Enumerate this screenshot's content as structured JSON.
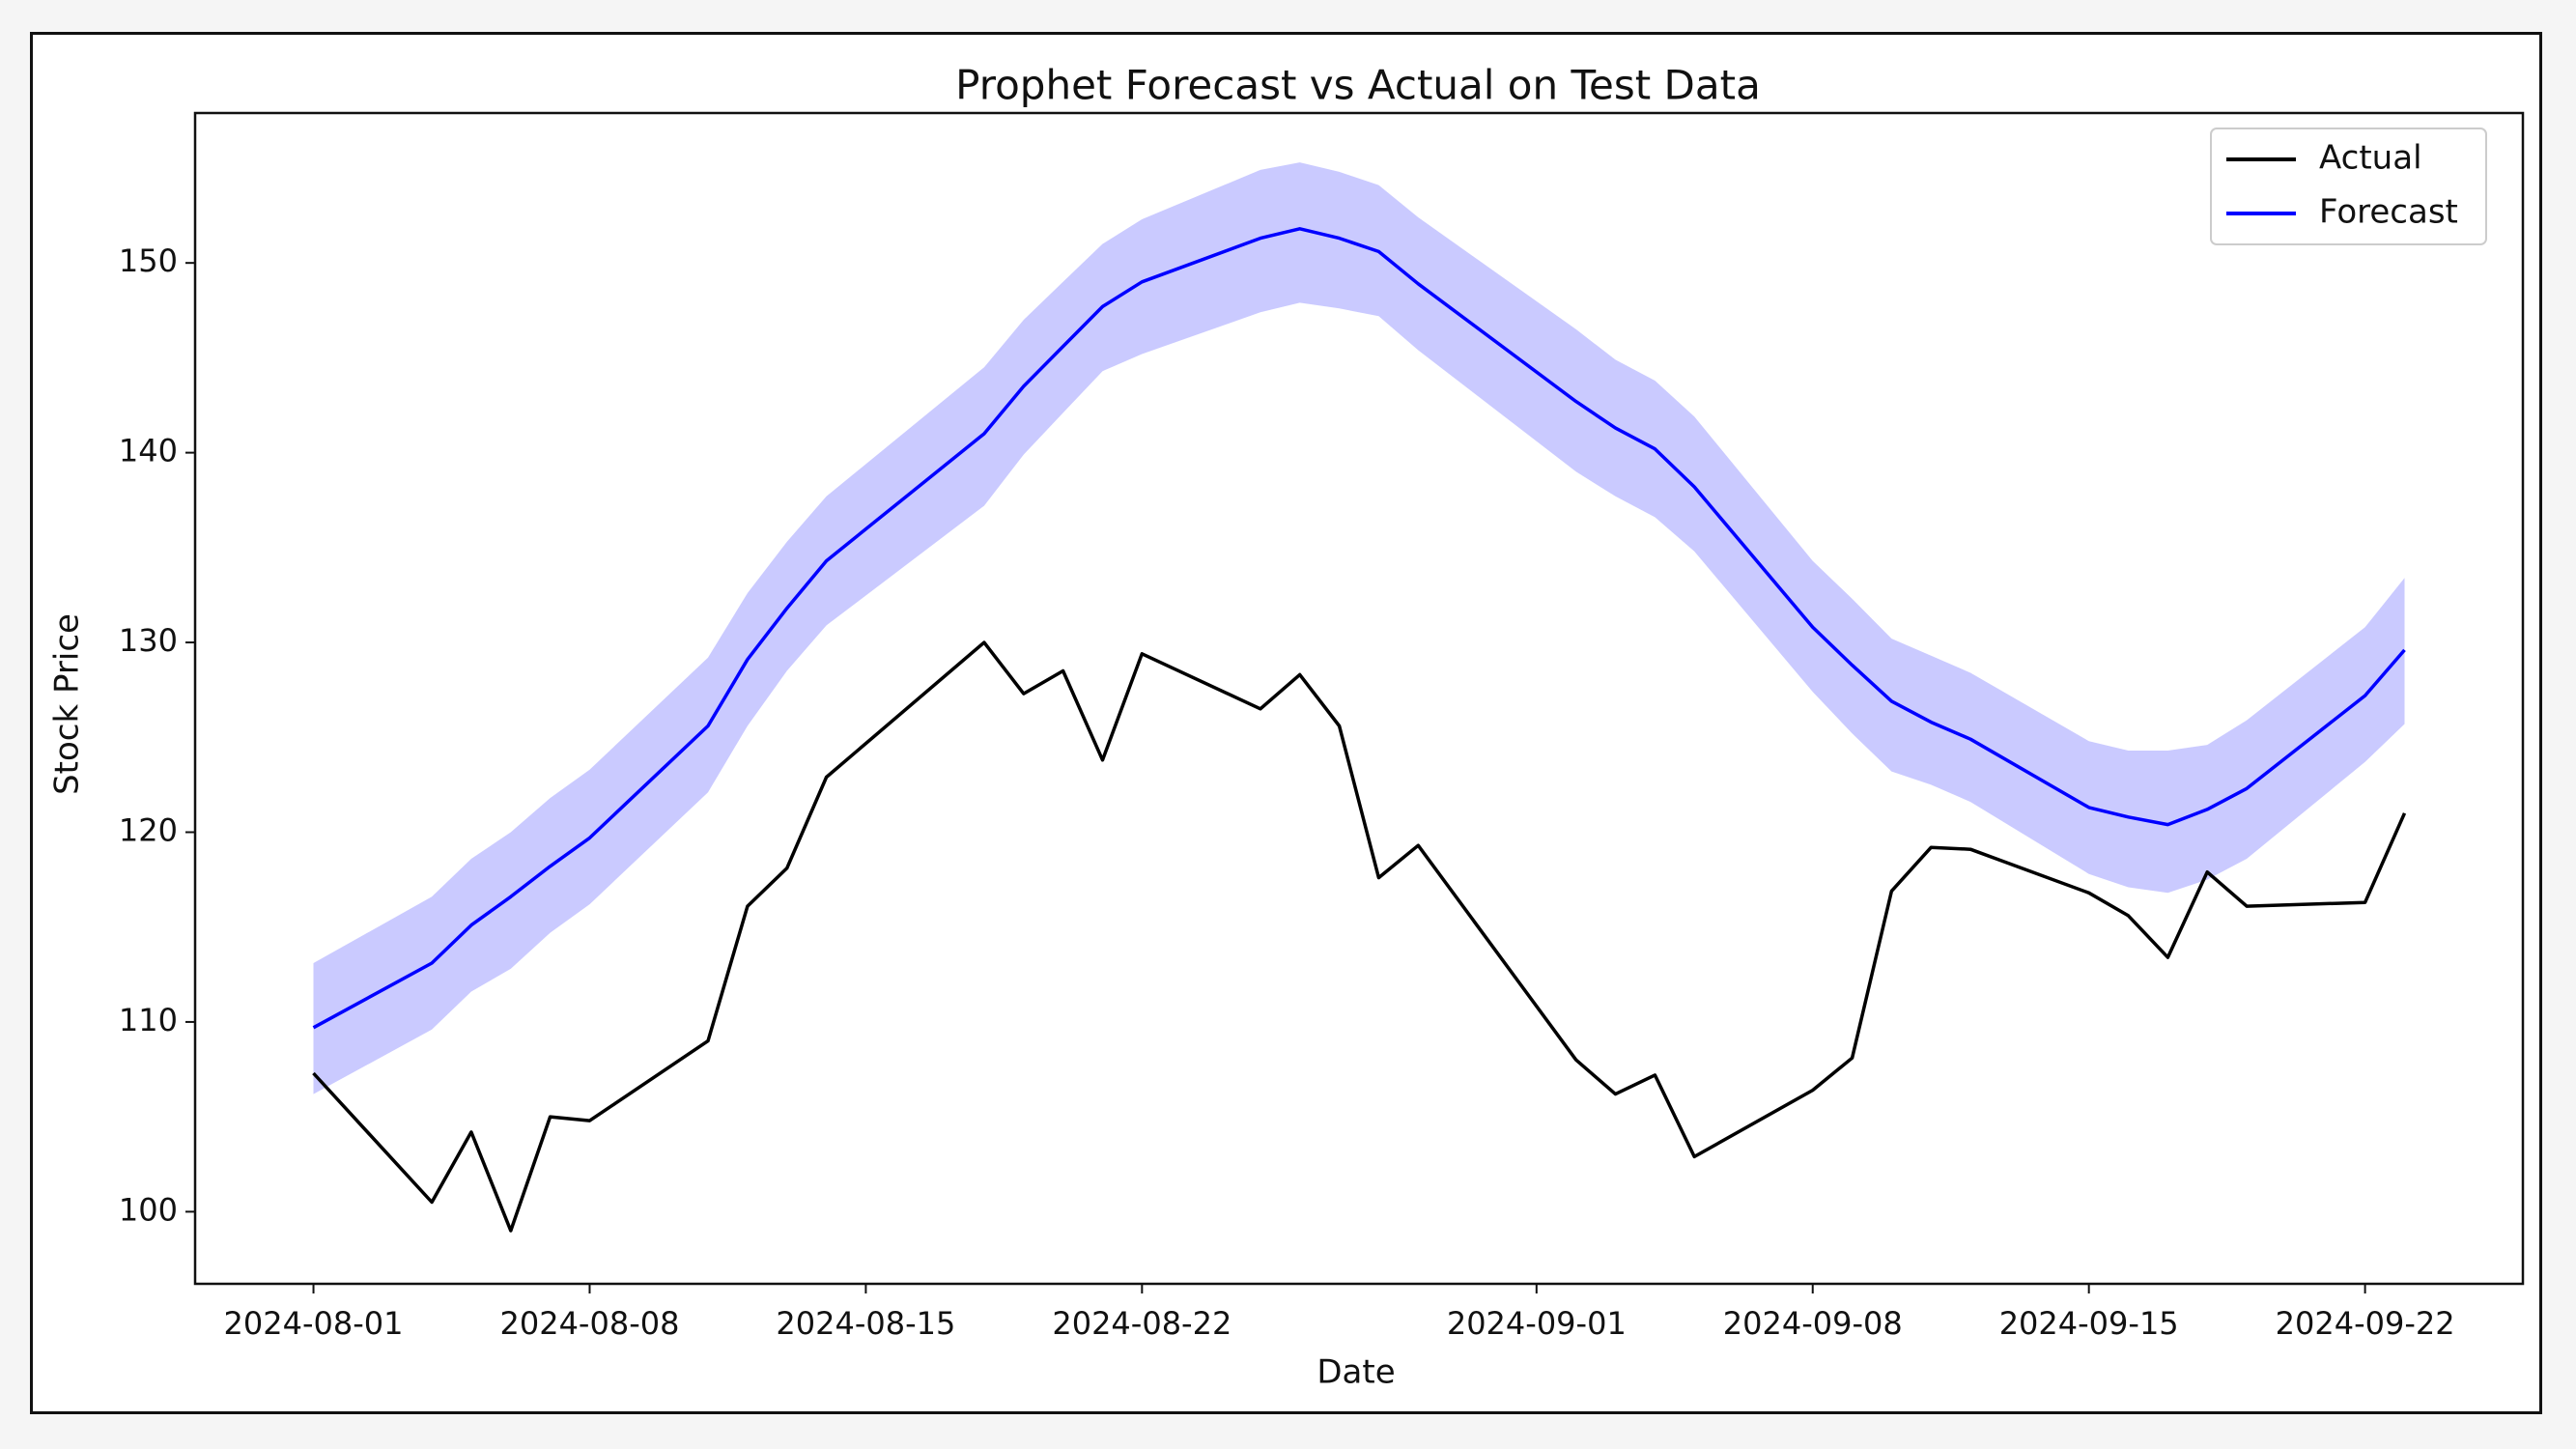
{
  "chart_data": {
    "type": "line",
    "title": "Prophet Forecast vs Actual on Test Data",
    "xlabel": "Date",
    "ylabel": "Stock Price",
    "xlim": [
      "2024-07-29",
      "2024-09-26"
    ],
    "ylim": [
      96.2,
      157.9
    ],
    "x_ticks": [
      "2024-08-01",
      "2024-08-08",
      "2024-08-15",
      "2024-08-22",
      "2024-09-01",
      "2024-09-08",
      "2024-09-15",
      "2024-09-22"
    ],
    "y_ticks": [
      100,
      110,
      120,
      130,
      140,
      150
    ],
    "grid": false,
    "legend_position": "top-right",
    "colors": {
      "actual": "#000000",
      "forecast": "#0000ff",
      "interval": "#aaaaff"
    },
    "series": [
      {
        "name": "Actual",
        "points": [
          [
            "2024-08-01",
            107.3
          ],
          [
            "2024-08-04",
            100.5
          ],
          [
            "2024-08-05",
            104.2
          ],
          [
            "2024-08-06",
            99.0
          ],
          [
            "2024-08-07",
            105.0
          ],
          [
            "2024-08-08",
            104.8
          ],
          [
            "2024-08-11",
            109.0
          ],
          [
            "2024-08-12",
            116.1
          ],
          [
            "2024-08-13",
            118.1
          ],
          [
            "2024-08-14",
            122.9
          ],
          [
            "2024-08-18",
            130.0
          ],
          [
            "2024-08-19",
            127.3
          ],
          [
            "2024-08-20",
            128.5
          ],
          [
            "2024-08-21",
            123.8
          ],
          [
            "2024-08-22",
            129.4
          ],
          [
            "2024-08-25",
            126.5
          ],
          [
            "2024-08-26",
            128.3
          ],
          [
            "2024-08-27",
            125.6
          ],
          [
            "2024-08-28",
            117.6
          ],
          [
            "2024-08-29",
            119.3
          ],
          [
            "2024-09-02",
            108.0
          ],
          [
            "2024-09-03",
            106.2
          ],
          [
            "2024-09-04",
            107.2
          ],
          [
            "2024-09-05",
            102.9
          ],
          [
            "2024-09-08",
            106.4
          ],
          [
            "2024-09-09",
            108.1
          ],
          [
            "2024-09-10",
            116.9
          ],
          [
            "2024-09-11",
            119.2
          ],
          [
            "2024-09-12",
            119.1
          ],
          [
            "2024-09-15",
            116.8
          ],
          [
            "2024-09-16",
            115.6
          ],
          [
            "2024-09-17",
            113.4
          ],
          [
            "2024-09-18",
            117.9
          ],
          [
            "2024-09-19",
            116.1
          ],
          [
            "2024-09-22",
            116.3
          ],
          [
            "2024-09-23",
            121.0
          ]
        ]
      },
      {
        "name": "Forecast",
        "points": [
          [
            "2024-08-01",
            109.7
          ],
          [
            "2024-08-04",
            113.1
          ],
          [
            "2024-08-05",
            115.1
          ],
          [
            "2024-08-06",
            116.6
          ],
          [
            "2024-08-07",
            118.2
          ],
          [
            "2024-08-08",
            119.7
          ],
          [
            "2024-08-11",
            125.6
          ],
          [
            "2024-08-12",
            129.1
          ],
          [
            "2024-08-13",
            131.8
          ],
          [
            "2024-08-14",
            134.3
          ],
          [
            "2024-08-18",
            141.0
          ],
          [
            "2024-08-19",
            143.5
          ],
          [
            "2024-08-20",
            145.6
          ],
          [
            "2024-08-21",
            147.7
          ],
          [
            "2024-08-22",
            149.0
          ],
          [
            "2024-08-25",
            151.3
          ],
          [
            "2024-08-26",
            151.8
          ],
          [
            "2024-08-27",
            151.3
          ],
          [
            "2024-08-28",
            150.6
          ],
          [
            "2024-08-29",
            148.9
          ],
          [
            "2024-09-02",
            142.7
          ],
          [
            "2024-09-03",
            141.3
          ],
          [
            "2024-09-04",
            140.2
          ],
          [
            "2024-09-05",
            138.2
          ],
          [
            "2024-09-08",
            130.8
          ],
          [
            "2024-09-09",
            128.8
          ],
          [
            "2024-09-10",
            126.9
          ],
          [
            "2024-09-11",
            125.8
          ],
          [
            "2024-09-12",
            124.9
          ],
          [
            "2024-09-15",
            121.3
          ],
          [
            "2024-09-16",
            120.8
          ],
          [
            "2024-09-17",
            120.4
          ],
          [
            "2024-09-18",
            121.2
          ],
          [
            "2024-09-19",
            122.3
          ],
          [
            "2024-09-22",
            127.2
          ],
          [
            "2024-09-23",
            129.6
          ]
        ],
        "lower": [
          106.2,
          109.6,
          111.6,
          112.8,
          114.7,
          116.2,
          122.1,
          125.6,
          128.5,
          130.9,
          137.2,
          139.9,
          142.1,
          144.3,
          145.2,
          147.4,
          147.9,
          147.6,
          147.2,
          145.4,
          139.0,
          137.7,
          136.6,
          134.8,
          127.4,
          125.2,
          123.2,
          122.5,
          121.6,
          117.8,
          117.1,
          116.8,
          117.5,
          118.6,
          123.7,
          125.7
        ],
        "upper": [
          113.1,
          116.6,
          118.6,
          120.0,
          121.8,
          123.3,
          129.2,
          132.6,
          135.3,
          137.7,
          144.5,
          147.0,
          149.0,
          151.0,
          152.3,
          154.9,
          155.3,
          154.8,
          154.1,
          152.4,
          146.5,
          144.9,
          143.8,
          141.9,
          134.3,
          132.3,
          130.2,
          129.3,
          128.4,
          124.8,
          124.3,
          124.3,
          124.6,
          125.9,
          130.8,
          133.4
        ]
      }
    ]
  }
}
